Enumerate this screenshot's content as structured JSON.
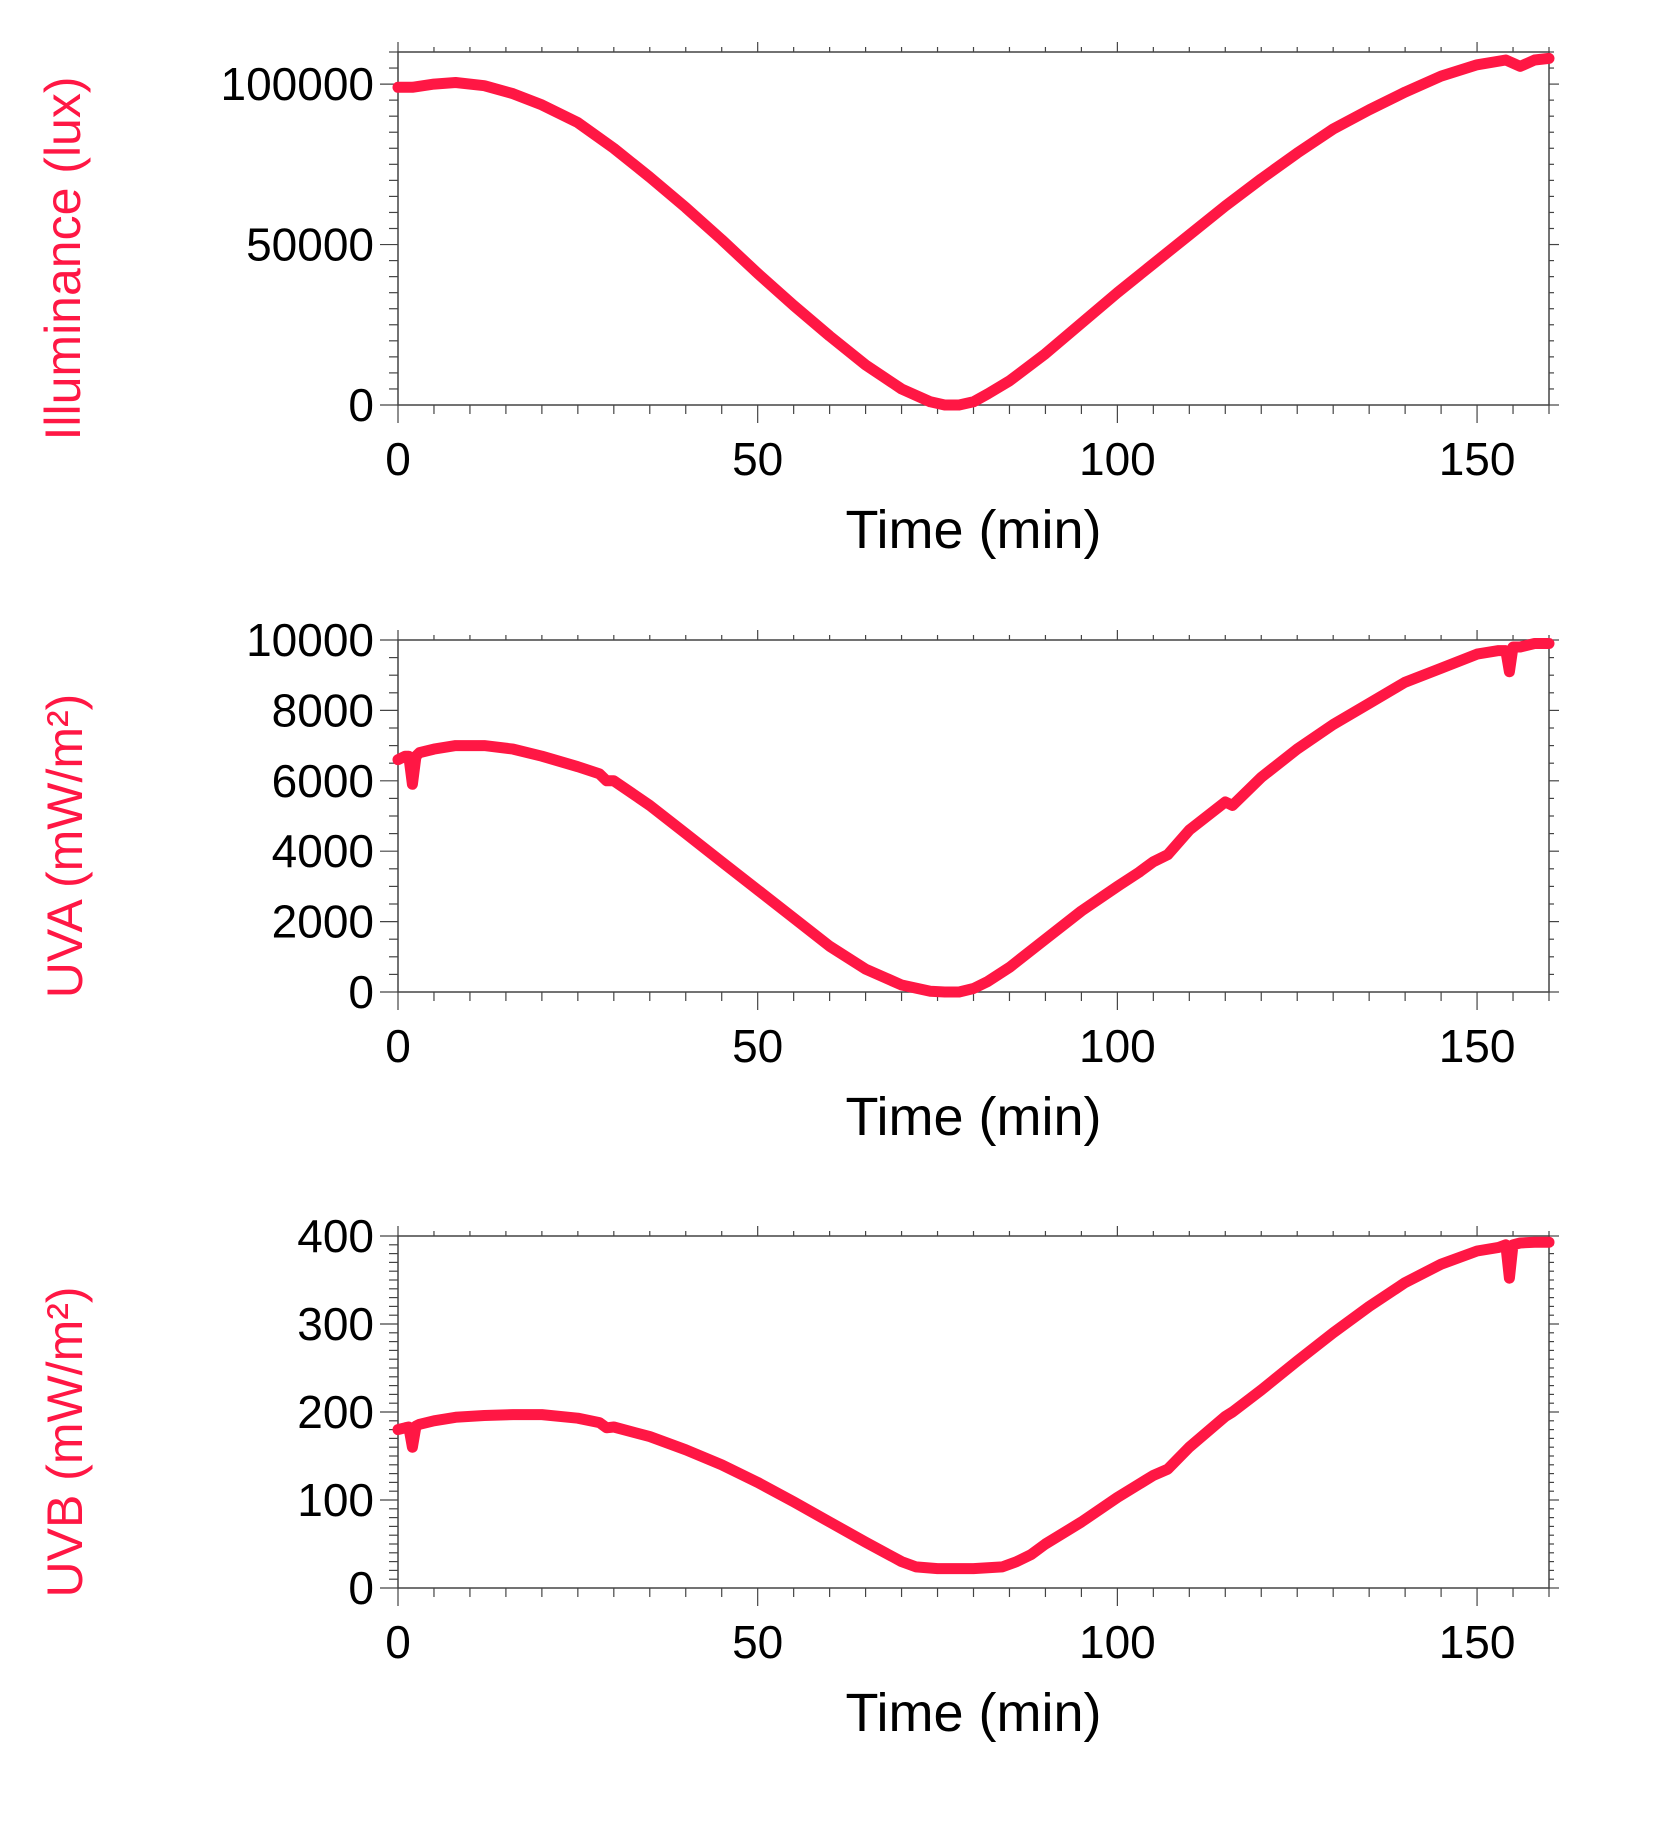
{
  "colors": {
    "series": "#ff1744",
    "axis": "#444444",
    "text": "#000000"
  },
  "chart_data": [
    {
      "type": "line",
      "title": "",
      "xlabel": "Time (min)",
      "ylabel": "Illuminance (lux)",
      "xlim": [
        0,
        160
      ],
      "ylim": [
        0,
        110000
      ],
      "xticks": [
        0,
        50,
        100,
        150
      ],
      "yticks": [
        0,
        50000,
        100000
      ],
      "series": [
        {
          "name": "Illuminance",
          "x": [
            0,
            2,
            5,
            8,
            12,
            16,
            20,
            25,
            30,
            35,
            40,
            45,
            50,
            55,
            60,
            65,
            70,
            74,
            76,
            78,
            80,
            82,
            85,
            90,
            95,
            100,
            105,
            110,
            115,
            120,
            125,
            130,
            135,
            140,
            145,
            150,
            154,
            156,
            158,
            160
          ],
          "y": [
            99000,
            99000,
            100000,
            100500,
            99500,
            97000,
            93500,
            88000,
            80000,
            71000,
            61500,
            51500,
            41000,
            31000,
            21500,
            12500,
            5000,
            1000,
            0,
            0,
            1000,
            3500,
            7500,
            16000,
            25500,
            35000,
            44000,
            53000,
            62000,
            70500,
            78500,
            86000,
            92000,
            97500,
            102500,
            106000,
            107500,
            105500,
            107500,
            108000
          ]
        }
      ]
    },
    {
      "type": "line",
      "title": "",
      "xlabel": "Time (min)",
      "ylabel": "UVA (mW/m²)",
      "xlim": [
        0,
        160
      ],
      "ylim": [
        0,
        10000
      ],
      "xticks": [
        0,
        50,
        100,
        150
      ],
      "yticks": [
        0,
        2000,
        4000,
        6000,
        8000,
        10000
      ],
      "series": [
        {
          "name": "UVA",
          "x": [
            0,
            1,
            1.5,
            2,
            2.5,
            3,
            5,
            8,
            12,
            16,
            20,
            25,
            28,
            29,
            30,
            35,
            40,
            45,
            50,
            55,
            60,
            65,
            70,
            74,
            76,
            78,
            80,
            82,
            85,
            90,
            95,
            100,
            103,
            105,
            107,
            110,
            115,
            116,
            120,
            125,
            130,
            135,
            140,
            145,
            150,
            153,
            154,
            154.5,
            155,
            156,
            158,
            160
          ],
          "y": [
            6600,
            6700,
            6700,
            5900,
            6700,
            6800,
            6900,
            7000,
            7000,
            6900,
            6700,
            6400,
            6200,
            6000,
            6000,
            5300,
            4500,
            3700,
            2900,
            2100,
            1300,
            650,
            200,
            20,
            0,
            0,
            100,
            300,
            700,
            1500,
            2300,
            3000,
            3400,
            3700,
            3900,
            4600,
            5400,
            5300,
            6100,
            6900,
            7600,
            8200,
            8800,
            9200,
            9600,
            9700,
            9700,
            9100,
            9800,
            9800,
            9900,
            9900
          ]
        }
      ]
    },
    {
      "type": "line",
      "title": "",
      "xlabel": "Time (min)",
      "ylabel": "UVB (mW/m²)",
      "xlim": [
        0,
        160
      ],
      "ylim": [
        0,
        400
      ],
      "xticks": [
        0,
        50,
        100,
        150
      ],
      "yticks": [
        0,
        100,
        200,
        300,
        400
      ],
      "series": [
        {
          "name": "UVB",
          "x": [
            0,
            1,
            1.5,
            2,
            2.5,
            3,
            5,
            8,
            12,
            16,
            20,
            25,
            28,
            29,
            30,
            35,
            40,
            45,
            50,
            55,
            60,
            65,
            70,
            72,
            75,
            80,
            84,
            86,
            88,
            90,
            95,
            100,
            103,
            105,
            107,
            110,
            115,
            116,
            120,
            125,
            130,
            135,
            140,
            145,
            150,
            153,
            154,
            154.5,
            155,
            156,
            158,
            160
          ],
          "y": [
            180,
            182,
            183,
            160,
            184,
            186,
            190,
            194,
            196,
            197,
            197,
            193,
            188,
            182,
            183,
            172,
            157,
            140,
            120,
            98,
            75,
            52,
            30,
            24,
            22,
            22,
            24,
            30,
            38,
            50,
            75,
            103,
            118,
            128,
            135,
            160,
            195,
            200,
            225,
            258,
            290,
            320,
            347,
            368,
            383,
            387,
            390,
            352,
            390,
            392,
            393,
            393
          ]
        }
      ]
    }
  ]
}
